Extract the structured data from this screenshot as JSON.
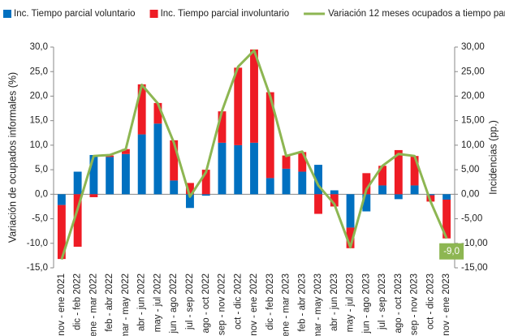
{
  "chart_data": {
    "type": "bar-line",
    "y_label": "Variación de ocupados informales (%)",
    "y2_label": "Incidencias (pp.)",
    "annotation": "-9,0",
    "categories": [
      "nov - ene 2021",
      "dic - feb 2022",
      "ene - mar 2022",
      "feb - abr 2022",
      "mar - may 2022",
      "abr - jun 2022",
      "may - jul 2022",
      "jun - ago 2022",
      "jul - sep 2022",
      "ago - oct 2022",
      "sep - nov 2022",
      "oct - dic 2022",
      "nov - ene 2022",
      "dic - feb 2023",
      "ene - mar 2023",
      "feb - abr 2023",
      "mar - may 2023",
      "abr - jun 2023",
      "may - jul 2023",
      "jun - ago 2023",
      "jul - sep 2023",
      "ago - oct 2023",
      "sep - nov 2023",
      "oct - dic 2023",
      "nov - ene 2023"
    ],
    "series": [
      {
        "name": "Inc. Tiempo parcial voluntario",
        "type": "bar",
        "color": "#0070c0",
        "values": [
          -2.2,
          4.6,
          8.0,
          7.6,
          8.2,
          12.2,
          14.4,
          2.8,
          -2.8,
          -0.3,
          10.5,
          10.0,
          10.5,
          3.3,
          5.2,
          4.6,
          6.0,
          0.8,
          -6.8,
          -3.5,
          1.8,
          -1.0,
          1.8,
          -0.2,
          -1.1
        ]
      },
      {
        "name": "Inc. Tiempo parcial involuntario",
        "type": "bar",
        "color": "#ee1c25",
        "values": [
          -11.0,
          -10.7,
          -0.6,
          0.3,
          1.0,
          10.2,
          4.2,
          8.2,
          2.3,
          5.0,
          6.4,
          15.8,
          19.0,
          17.5,
          2.7,
          4.0,
          -4.0,
          -2.5,
          -4.2,
          4.3,
          4.0,
          9.0,
          6.0,
          -1.3,
          -7.9
        ]
      },
      {
        "name": "Variación 12 meses ocupados a tiempo parcial",
        "type": "line",
        "axis": "y2",
        "color": "#8db652",
        "values": [
          -13.3,
          -3.0,
          7.8,
          8.0,
          9.2,
          22.3,
          18.5,
          10.5,
          -0.5,
          4.5,
          17.0,
          26.0,
          29.3,
          20.0,
          7.8,
          8.7,
          1.8,
          -2.0,
          -10.8,
          1.0,
          5.8,
          8.2,
          7.8,
          -1.5,
          -9.0
        ]
      }
    ],
    "ylim": [
      -15,
      30
    ],
    "yticks": [
      {
        "value": -15,
        "label": "-15,0"
      },
      {
        "value": -10,
        "label": "-10,0"
      },
      {
        "value": -5,
        "label": "-5,0"
      },
      {
        "value": 0,
        "label": "0,0"
      },
      {
        "value": 5,
        "label": "5,0"
      },
      {
        "value": 10,
        "label": "10,0"
      },
      {
        "value": 15,
        "label": "15,0"
      },
      {
        "value": 20,
        "label": "20,0"
      },
      {
        "value": 25,
        "label": "25,0"
      },
      {
        "value": 30,
        "label": "30,0"
      }
    ],
    "y2lim": [
      -15,
      30
    ],
    "y2ticks": [
      {
        "value": -15,
        "label": "-15,00"
      },
      {
        "value": -10,
        "label": "-10,00"
      },
      {
        "value": -5,
        "label": "-5,00"
      },
      {
        "value": 0,
        "label": "0,00"
      },
      {
        "value": 5,
        "label": "5,00"
      },
      {
        "value": 10,
        "label": "10,00"
      },
      {
        "value": 15,
        "label": "15,00"
      },
      {
        "value": 20,
        "label": "20,00"
      },
      {
        "value": 25,
        "label": "25,00"
      },
      {
        "value": 30,
        "label": "30,00"
      }
    ]
  }
}
